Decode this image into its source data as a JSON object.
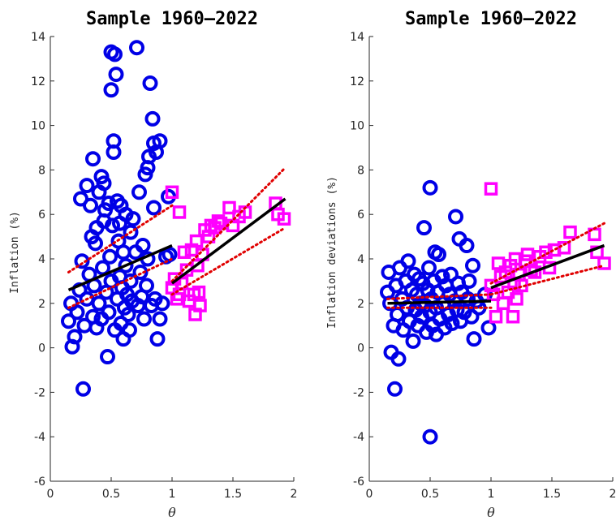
{
  "chart_data": [
    {
      "type": "scatter",
      "title": "Sample 1960–2022",
      "xlabel": "θ",
      "ylabel": "Inflation (%)",
      "xlim": [
        0,
        2
      ],
      "ylim": [
        -6,
        14
      ],
      "xticks": [
        "0",
        "0.5",
        "1",
        "1.5",
        "2"
      ],
      "yticks": [
        "-6",
        "-4",
        "-2",
        "0",
        "2",
        "4",
        "6",
        "8",
        "10",
        "12",
        "14"
      ],
      "grid": false,
      "legend": "none",
      "series": [
        {
          "marker": "circle",
          "color": "#0000e6",
          "points": [
            [
              0.15,
              1.2
            ],
            [
              0.17,
              2.0
            ],
            [
              0.18,
              0.05
            ],
            [
              0.2,
              0.5
            ],
            [
              0.22,
              1.6
            ],
            [
              0.24,
              2.6
            ],
            [
              0.25,
              6.7
            ],
            [
              0.26,
              3.9
            ],
            [
              0.27,
              -1.85
            ],
            [
              0.28,
              1.0
            ],
            [
              0.3,
              7.3
            ],
            [
              0.3,
              2.2
            ],
            [
              0.32,
              3.3
            ],
            [
              0.33,
              6.4
            ],
            [
              0.34,
              5.0
            ],
            [
              0.35,
              8.5
            ],
            [
              0.35,
              1.4
            ],
            [
              0.36,
              2.8
            ],
            [
              0.37,
              4.7
            ],
            [
              0.38,
              0.9
            ],
            [
              0.38,
              5.4
            ],
            [
              0.4,
              7.0
            ],
            [
              0.4,
              2.0
            ],
            [
              0.42,
              7.7
            ],
            [
              0.42,
              1.3
            ],
            [
              0.43,
              3.6
            ],
            [
              0.44,
              7.4
            ],
            [
              0.44,
              5.7
            ],
            [
              0.45,
              6.2
            ],
            [
              0.46,
              2.5
            ],
            [
              0.47,
              -0.4
            ],
            [
              0.48,
              6.5
            ],
            [
              0.48,
              1.6
            ],
            [
              0.49,
              4.1
            ],
            [
              0.5,
              11.6
            ],
            [
              0.5,
              13.3
            ],
            [
              0.5,
              3.0
            ],
            [
              0.51,
              5.5
            ],
            [
              0.52,
              8.8
            ],
            [
              0.52,
              9.3
            ],
            [
              0.53,
              13.2
            ],
            [
              0.53,
              0.8
            ],
            [
              0.54,
              12.3
            ],
            [
              0.55,
              2.2
            ],
            [
              0.55,
              6.6
            ],
            [
              0.56,
              4.8
            ],
            [
              0.57,
              5.6
            ],
            [
              0.57,
              3.2
            ],
            [
              0.58,
              1.1
            ],
            [
              0.58,
              6.4
            ],
            [
              0.59,
              2.7
            ],
            [
              0.6,
              4.3
            ],
            [
              0.6,
              0.4
            ],
            [
              0.61,
              1.8
            ],
            [
              0.62,
              6.0
            ],
            [
              0.62,
              3.7
            ],
            [
              0.63,
              2.4
            ],
            [
              0.64,
              1.5
            ],
            [
              0.65,
              0.8
            ],
            [
              0.66,
              5.2
            ],
            [
              0.66,
              3.0
            ],
            [
              0.67,
              2.1
            ],
            [
              0.68,
              5.8
            ],
            [
              0.7,
              4.3
            ],
            [
              0.71,
              13.5
            ],
            [
              0.72,
              1.9
            ],
            [
              0.73,
              7.0
            ],
            [
              0.74,
              3.4
            ],
            [
              0.75,
              2.3
            ],
            [
              0.76,
              4.6
            ],
            [
              0.77,
              1.3
            ],
            [
              0.78,
              7.8
            ],
            [
              0.79,
              2.8
            ],
            [
              0.8,
              8.1
            ],
            [
              0.8,
              4.0
            ],
            [
              0.81,
              8.6
            ],
            [
              0.82,
              11.9
            ],
            [
              0.83,
              1.9
            ],
            [
              0.84,
              10.3
            ],
            [
              0.85,
              9.2
            ],
            [
              0.85,
              6.3
            ],
            [
              0.86,
              2.2
            ],
            [
              0.87,
              8.8
            ],
            [
              0.88,
              0.4
            ],
            [
              0.9,
              9.3
            ],
            [
              0.9,
              1.3
            ],
            [
              0.92,
              2.0
            ],
            [
              0.95,
              4.1
            ],
            [
              0.97,
              6.8
            ],
            [
              0.98,
              4.2
            ]
          ]
        },
        {
          "marker": "square",
          "color": "#ff00ff",
          "points": [
            [
              1.0,
              7.0
            ],
            [
              1.0,
              2.7
            ],
            [
              1.02,
              3.1
            ],
            [
              1.04,
              2.2
            ],
            [
              1.06,
              2.4
            ],
            [
              1.06,
              6.1
            ],
            [
              1.08,
              2.9
            ],
            [
              1.1,
              4.3
            ],
            [
              1.12,
              3.5
            ],
            [
              1.14,
              2.1
            ],
            [
              1.16,
              4.4
            ],
            [
              1.18,
              2.4
            ],
            [
              1.19,
              1.5
            ],
            [
              1.2,
              4.8
            ],
            [
              1.21,
              3.7
            ],
            [
              1.22,
              2.5
            ],
            [
              1.23,
              1.9
            ],
            [
              1.25,
              4.2
            ],
            [
              1.27,
              5.3
            ],
            [
              1.3,
              5.0
            ],
            [
              1.32,
              5.5
            ],
            [
              1.35,
              5.4
            ],
            [
              1.38,
              5.7
            ],
            [
              1.4,
              5.6
            ],
            [
              1.47,
              6.3
            ],
            [
              1.5,
              5.5
            ],
            [
              1.55,
              5.9
            ],
            [
              1.6,
              6.1
            ],
            [
              1.85,
              6.5
            ],
            [
              1.87,
              6.0
            ],
            [
              1.92,
              5.8
            ]
          ]
        }
      ],
      "fits": [
        {
          "x": [
            0.15,
            1.0
          ],
          "line": [
            2.6,
            4.6
          ],
          "lower": [
            1.8,
            4.0
          ],
          "upper": [
            3.4,
            6.4
          ]
        },
        {
          "x": [
            1.0,
            1.93
          ],
          "line": [
            2.9,
            6.7
          ],
          "lower": [
            2.4,
            5.4
          ],
          "upper": [
            3.0,
            8.1
          ]
        }
      ]
    },
    {
      "type": "scatter",
      "title": "Sample 1960–2022",
      "xlabel": "θ",
      "ylabel": "Inflation deviations (%)",
      "xlim": [
        0,
        2
      ],
      "ylim": [
        -6,
        14
      ],
      "xticks": [
        "0",
        "0.5",
        "1",
        "1.5",
        "2"
      ],
      "yticks": [
        "-6",
        "-4",
        "-2",
        "0",
        "2",
        "4",
        "6",
        "8",
        "10",
        "12",
        "14"
      ],
      "grid": false,
      "legend": "none",
      "series": [
        {
          "marker": "circle",
          "color": "#0000e6",
          "points": [
            [
              0.15,
              2.5
            ],
            [
              0.16,
              3.4
            ],
            [
              0.17,
              2.0
            ],
            [
              0.18,
              -0.2
            ],
            [
              0.2,
              1.0
            ],
            [
              0.21,
              -1.85
            ],
            [
              0.22,
              2.8
            ],
            [
              0.23,
              1.5
            ],
            [
              0.24,
              -0.5
            ],
            [
              0.25,
              3.6
            ],
            [
              0.27,
              2.2
            ],
            [
              0.28,
              0.8
            ],
            [
              0.3,
              3.0
            ],
            [
              0.31,
              1.8
            ],
            [
              0.32,
              3.9
            ],
            [
              0.33,
              1.2
            ],
            [
              0.35,
              2.6
            ],
            [
              0.36,
              0.3
            ],
            [
              0.37,
              3.3
            ],
            [
              0.38,
              1.7
            ],
            [
              0.39,
              2.4
            ],
            [
              0.4,
              1.0
            ],
            [
              0.41,
              3.1
            ],
            [
              0.42,
              2.0
            ],
            [
              0.43,
              1.4
            ],
            [
              0.44,
              2.9
            ],
            [
              0.45,
              5.4
            ],
            [
              0.46,
              1.9
            ],
            [
              0.47,
              0.7
            ],
            [
              0.48,
              2.6
            ],
            [
              0.49,
              3.6
            ],
            [
              0.5,
              7.2
            ],
            [
              0.5,
              -4.0
            ],
            [
              0.5,
              1.6
            ],
            [
              0.51,
              2.2
            ],
            [
              0.52,
              1.0
            ],
            [
              0.53,
              3.0
            ],
            [
              0.54,
              4.3
            ],
            [
              0.55,
              1.8
            ],
            [
              0.55,
              0.6
            ],
            [
              0.56,
              2.5
            ],
            [
              0.57,
              4.2
            ],
            [
              0.58,
              1.3
            ],
            [
              0.6,
              3.2
            ],
            [
              0.61,
              2.0
            ],
            [
              0.62,
              0.9
            ],
            [
              0.63,
              2.8
            ],
            [
              0.65,
              1.5
            ],
            [
              0.66,
              2.4
            ],
            [
              0.67,
              3.3
            ],
            [
              0.68,
              1.1
            ],
            [
              0.7,
              2.1
            ],
            [
              0.71,
              5.9
            ],
            [
              0.72,
              1.7
            ],
            [
              0.73,
              2.9
            ],
            [
              0.74,
              4.9
            ],
            [
              0.75,
              1.2
            ],
            [
              0.76,
              2.5
            ],
            [
              0.78,
              1.6
            ],
            [
              0.8,
              4.6
            ],
            [
              0.81,
              2.2
            ],
            [
              0.82,
              3.0
            ],
            [
              0.84,
              1.4
            ],
            [
              0.85,
              3.7
            ],
            [
              0.86,
              0.4
            ],
            [
              0.88,
              2.1
            ],
            [
              0.9,
              1.8
            ],
            [
              0.95,
              2.4
            ],
            [
              0.98,
              0.9
            ]
          ]
        },
        {
          "marker": "square",
          "color": "#ff00ff",
          "points": [
            [
              1.0,
              7.15
            ],
            [
              1.0,
              2.8
            ],
            [
              1.02,
              2.4
            ],
            [
              1.04,
              1.4
            ],
            [
              1.06,
              3.8
            ],
            [
              1.08,
              3.2
            ],
            [
              1.1,
              2.0
            ],
            [
              1.12,
              3.4
            ],
            [
              1.14,
              2.5
            ],
            [
              1.16,
              3.7
            ],
            [
              1.18,
              1.4
            ],
            [
              1.19,
              2.9
            ],
            [
              1.2,
              4.0
            ],
            [
              1.21,
              2.2
            ],
            [
              1.23,
              3.3
            ],
            [
              1.25,
              2.8
            ],
            [
              1.28,
              3.9
            ],
            [
              1.3,
              4.2
            ],
            [
              1.33,
              3.5
            ],
            [
              1.36,
              3.4
            ],
            [
              1.4,
              4.1
            ],
            [
              1.45,
              4.3
            ],
            [
              1.48,
              3.6
            ],
            [
              1.52,
              4.4
            ],
            [
              1.6,
              4.5
            ],
            [
              1.65,
              5.2
            ],
            [
              1.85,
              5.1
            ],
            [
              1.87,
              4.3
            ],
            [
              1.93,
              3.8
            ]
          ]
        }
      ],
      "fits": [
        {
          "x": [
            0.15,
            1.0
          ],
          "line": [
            2.0,
            2.1
          ],
          "lower": [
            1.8,
            1.8
          ],
          "upper": [
            2.2,
            2.4
          ]
        },
        {
          "x": [
            1.0,
            1.93
          ],
          "line": [
            2.7,
            4.6
          ],
          "lower": [
            2.4,
            3.7
          ],
          "upper": [
            2.9,
            5.6
          ]
        }
      ]
    }
  ]
}
